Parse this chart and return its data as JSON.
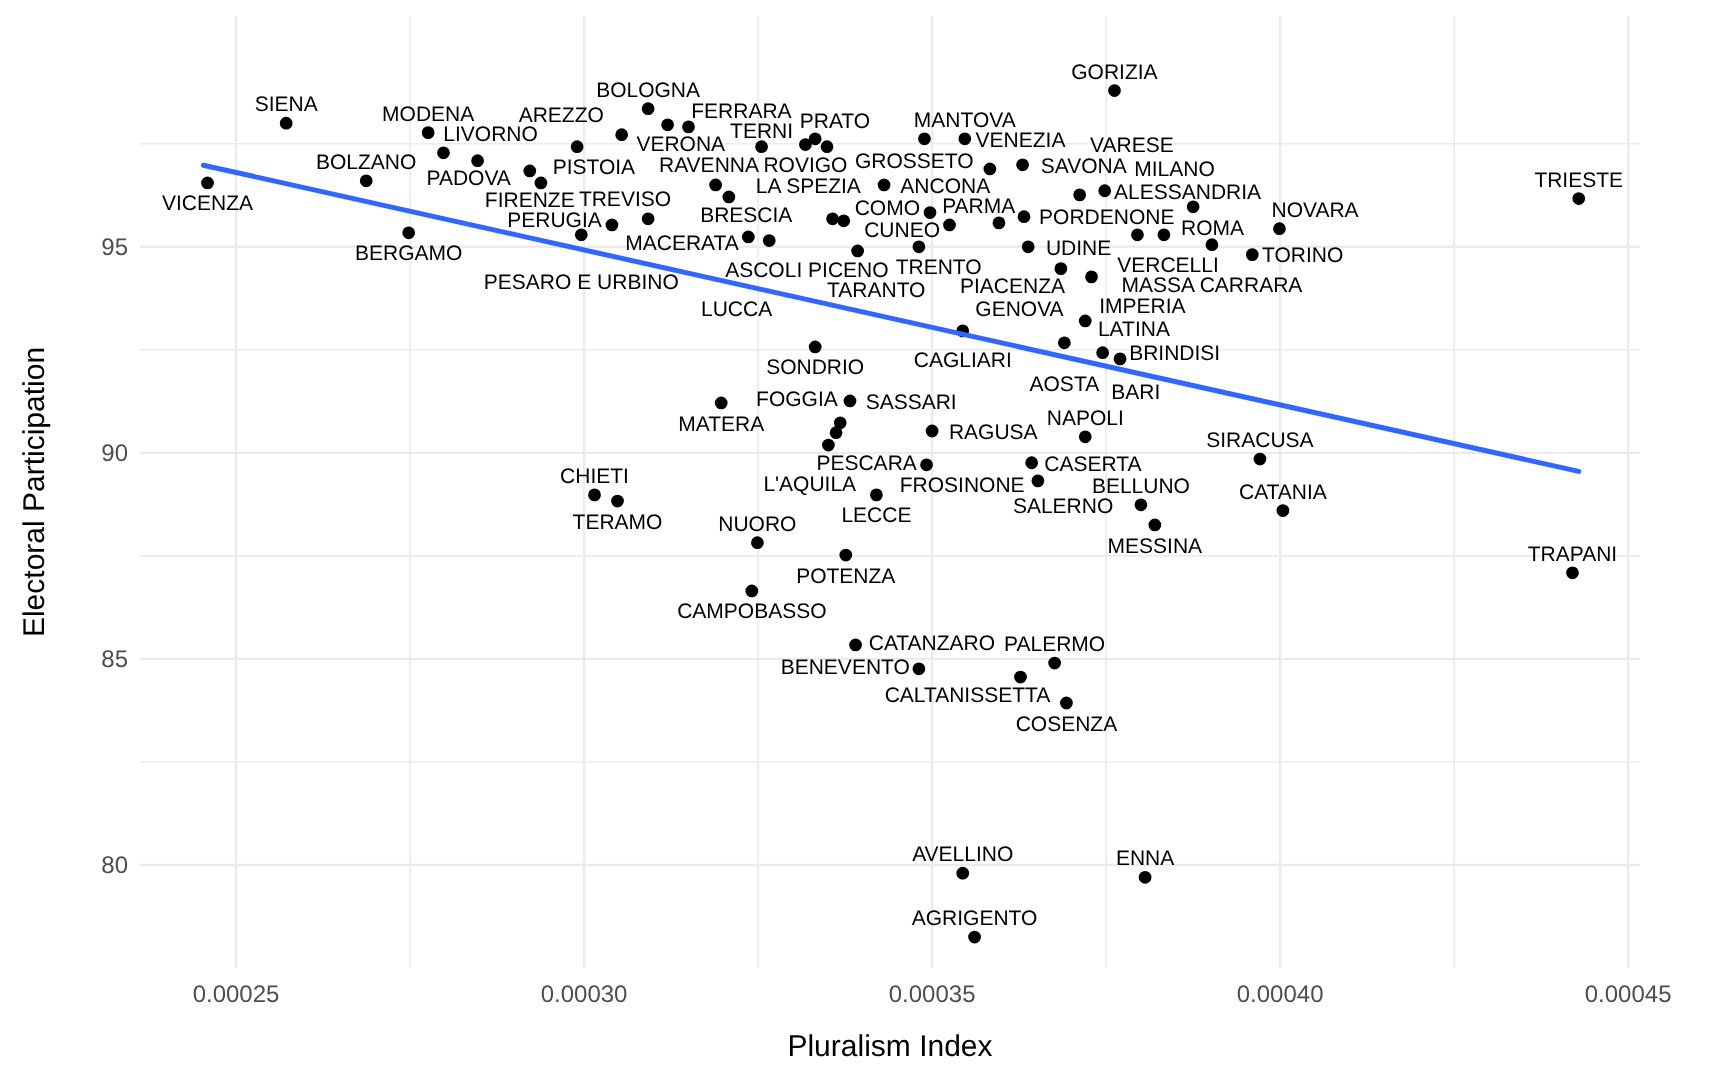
{
  "chart_data": {
    "type": "scatter",
    "xlabel": "Pluralism Index",
    "ylabel": "Electoral Participation",
    "xlim": [
      0.0002362,
      0.0004517
    ],
    "ylim": [
      77.5,
      100.6
    ],
    "xticks": [
      {
        "value": 0.00025,
        "label": "0.00025"
      },
      {
        "value": 0.000275,
        "label": null
      },
      {
        "value": 0.0003,
        "label": "0.00030"
      },
      {
        "value": 0.000325,
        "label": null
      },
      {
        "value": 0.00035,
        "label": "0.00035"
      },
      {
        "value": 0.000375,
        "label": null
      },
      {
        "value": 0.0004,
        "label": "0.00040"
      },
      {
        "value": 0.000425,
        "label": null
      },
      {
        "value": 0.00045,
        "label": "0.00045"
      }
    ],
    "yticks": [
      80,
      {
        "value": 82.5,
        "label": null
      },
      85,
      {
        "value": 87.5,
        "label": null
      },
      90,
      {
        "value": 92.5,
        "label": null
      },
      95,
      {
        "value": 97.5,
        "label": null
      }
    ],
    "grid": true,
    "series": [
      {
        "marker": "circle",
        "color": "#000000",
        "x": [
          0.0002459,
          0.0002572,
          0.0002687,
          0.0002748,
          0.0002776,
          0.0002798,
          0.0002847,
          0.0002922,
          0.0002938,
          0.000299,
          0.0002996,
          0.000304,
          0.0003092,
          0.0003054,
          0.000312,
          0.000315,
          0.0003255,
          0.0003318,
          0.0003332,
          0.0003349,
          0.0003489,
          0.0003547,
          0.0003189,
          0.0003208,
          0.0003092,
          0.0003236,
          0.0003266,
          0.0003357,
          0.0003373,
          0.0003393,
          0.0003431,
          0.0003481,
          0.0003497,
          0.0003525,
          0.0003583,
          0.0003596,
          0.000363,
          0.0003632,
          0.0003638,
          0.0003712,
          0.0003748,
          0.0003795,
          0.0003833,
          0.0003875,
          0.0003902,
          0.000396,
          0.0003999,
          0.0003685,
          0.0003729,
          0.0003762,
          0.0004429,
          0.0003544,
          0.000372,
          0.000369,
          0.0003745,
          0.000377,
          0.0003332,
          0.0003197,
          0.0003382,
          0.0003368,
          0.0003362,
          0.0003351,
          0.00035,
          0.0003492,
          0.0003643,
          0.0003652,
          0.000372,
          0.000342,
          0.0003015,
          0.0003048,
          0.00038,
          0.000382,
          0.0003249,
          0.0003376,
          0.0003241,
          0.0003971,
          0.0004004,
          0.000339,
          0.0003481,
          0.0003627,
          0.0003676,
          0.0003693,
          0.0003544,
          0.0003806,
          0.0003561,
          0.000442
        ],
        "values": [
          96.55,
          98.0,
          96.6,
          95.34,
          97.77,
          97.28,
          97.09,
          96.84,
          96.55,
          97.43,
          95.29,
          95.53,
          98.35,
          97.72,
          97.96,
          97.91,
          97.43,
          97.48,
          97.62,
          97.43,
          97.62,
          97.62,
          96.5,
          96.21,
          95.68,
          95.24,
          95.15,
          95.68,
          95.63,
          94.9,
          96.5,
          95.0,
          95.83,
          95.53,
          96.89,
          95.58,
          96.99,
          95.73,
          95.0,
          96.26,
          96.36,
          95.29,
          95.29,
          95.97,
          95.05,
          94.81,
          95.44,
          94.47,
          94.27,
          98.79,
          96.17,
          92.96,
          93.2,
          92.67,
          92.43,
          92.28,
          92.57,
          91.21,
          91.26,
          90.73,
          90.49,
          90.19,
          90.53,
          89.71,
          89.76,
          89.32,
          90.39,
          88.98,
          88.98,
          88.83,
          88.74,
          88.25,
          87.82,
          87.52,
          86.65,
          89.85,
          88.6,
          85.34,
          84.76,
          84.56,
          84.9,
          83.93,
          79.8,
          79.7,
          78.25,
          87.09
        ]
      },
      {
        "type": "line",
        "color": "#3366ff",
        "x": [
          0.0002453,
          0.0004429
        ],
        "values": [
          96.98,
          89.55
        ]
      }
    ],
    "annotations": [
      {
        "text": "VICENZA",
        "x": 0.0002459,
        "y": 96.55
      },
      {
        "text": "SIENA",
        "x": 0.0002572,
        "y": 98.0
      },
      {
        "text": "BOLZANO",
        "x": 0.0002687,
        "y": 96.6
      },
      {
        "text": "BERGAMO",
        "x": 0.0002748,
        "y": 95.34
      },
      {
        "text": "MODENA",
        "x": 0.0002776,
        "y": 97.77
      },
      {
        "text": "PADOVA",
        "x": 0.0002798,
        "y": 97.28
      },
      {
        "text": "LIVORNO",
        "x": 0.0002847,
        "y": 97.09
      },
      {
        "text": "FIRENZE",
        "x": 0.0002922,
        "y": 96.84
      },
      {
        "text": "PISTOIA",
        "x": 0.0002938,
        "y": 96.55
      },
      {
        "text": "AREZZO",
        "x": 0.000299,
        "y": 97.43
      },
      {
        "text": "PESARO E URBINO",
        "x": 0.0002996,
        "y": 95.29
      },
      {
        "text": "TREVISO",
        "x": 0.000304,
        "y": 95.53
      },
      {
        "text": "BOLOGNA",
        "x": 0.0003092,
        "y": 98.35
      },
      {
        "text": "VERONA",
        "x": 0.0003054,
        "y": 97.72
      },
      {
        "text": "RAVENNA",
        "x": 0.000312,
        "y": 97.96
      },
      {
        "text": "FERRARA",
        "x": 0.000315,
        "y": 97.91
      },
      {
        "text": "TERNI",
        "x": 0.0003255,
        "y": 97.43
      },
      {
        "text": "ROVIGO",
        "x": 0.0003318,
        "y": 97.48
      },
      {
        "text": "PRATO",
        "x": 0.0003332,
        "y": 97.62
      },
      {
        "text": "LA SPEZIA",
        "x": 0.0003349,
        "y": 97.43
      },
      {
        "text": "GROSSETO",
        "x": 0.0003489,
        "y": 97.62
      },
      {
        "text": "MANTOVA",
        "x": 0.0003547,
        "y": 97.62
      },
      {
        "text": "BRESCIA",
        "x": 0.0003189,
        "y": 96.5
      },
      {
        "text": "MACERATA",
        "x": 0.0003208,
        "y": 96.21
      },
      {
        "text": "PERUGIA",
        "x": 0.0003092,
        "y": 95.68
      },
      {
        "text": "ASCOLI PICENO",
        "x": 0.0003236,
        "y": 95.24
      },
      {
        "text": "LUCCA",
        "x": 0.0003266,
        "y": 95.15
      },
      {
        "text": "CUNEO",
        "x": 0.0003357,
        "y": 95.68
      },
      {
        "text": "COMO",
        "x": 0.0003373,
        "y": 95.63
      },
      {
        "text": "TARANTO",
        "x": 0.0003393,
        "y": 94.9
      },
      {
        "text": "ANCONA",
        "x": 0.0003431,
        "y": 96.5
      },
      {
        "text": "TRENTO",
        "x": 0.0003481,
        "y": 95.0
      },
      {
        "text": "PARMA",
        "x": 0.0003497,
        "y": 95.83
      },
      {
        "text": "PIACENZA",
        "x": 0.0003525,
        "y": 95.53
      },
      {
        "text": "VENEZIA",
        "x": 0.0003583,
        "y": 96.89
      },
      {
        "text": "SAVONA",
        "x": 0.000363,
        "y": 96.99
      },
      {
        "text": "PORDENONE",
        "x": 0.0003632,
        "y": 95.73
      },
      {
        "text": "UDINE",
        "x": 0.0003638,
        "y": 95.0
      },
      {
        "text": "VARESE",
        "x": 0.0003712,
        "y": 96.26
      },
      {
        "text": "ALESSANDRIA",
        "x": 0.0003748,
        "y": 96.36
      },
      {
        "text": "VERCELLI",
        "x": 0.0003795,
        "y": 95.29
      },
      {
        "text": "ROMA",
        "x": 0.0003833,
        "y": 95.29
      },
      {
        "text": "MILANO",
        "x": 0.0003875,
        "y": 95.97
      },
      {
        "text": "MASSA CARRARA",
        "x": 0.0003902,
        "y": 95.05
      },
      {
        "text": "TORINO",
        "x": 0.000396,
        "y": 94.81
      },
      {
        "text": "NOVARA",
        "x": 0.0003999,
        "y": 95.44
      },
      {
        "text": "GENOVA",
        "x": 0.0003685,
        "y": 94.47
      },
      {
        "text": "IMPERIA",
        "x": 0.0003729,
        "y": 94.27
      },
      {
        "text": "GORIZIA",
        "x": 0.0003762,
        "y": 98.79
      },
      {
        "text": "TRIESTE",
        "x": 0.0004429,
        "y": 96.17
      },
      {
        "text": "CAGLIARI",
        "x": 0.0003544,
        "y": 92.96
      },
      {
        "text": "LATINA",
        "x": 0.000372,
        "y": 93.2
      },
      {
        "text": "AOSTA",
        "x": 0.000369,
        "y": 92.67
      },
      {
        "text": "BRINDISI",
        "x": 0.0003745,
        "y": 92.43
      },
      {
        "text": "BARI",
        "x": 0.000377,
        "y": 92.28
      },
      {
        "text": "SONDRIO",
        "x": 0.0003332,
        "y": 92.57
      },
      {
        "text": "MATERA",
        "x": 0.0003197,
        "y": 91.21
      },
      {
        "text": "SASSARI",
        "x": 0.0003382,
        "y": 91.26
      },
      {
        "text": "FOGGIA",
        "x": 0.0003368,
        "y": 90.73
      },
      {
        "text": "PESCARA",
        "x": 0.0003362,
        "y": 90.49
      },
      {
        "text": "L'AQUILA",
        "x": 0.0003351,
        "y": 90.19
      },
      {
        "text": "RAGUSA",
        "x": 0.00035,
        "y": 90.53
      },
      {
        "text": "FROSINONE",
        "x": 0.0003492,
        "y": 89.71
      },
      {
        "text": "CASERTA",
        "x": 0.0003643,
        "y": 89.76
      },
      {
        "text": "SALERNO",
        "x": 0.0003652,
        "y": 89.32
      },
      {
        "text": "NAPOLI",
        "x": 0.000372,
        "y": 90.39
      },
      {
        "text": "LECCE",
        "x": 0.000342,
        "y": 88.98
      },
      {
        "text": "CHIETI",
        "x": 0.0003015,
        "y": 88.98
      },
      {
        "text": "TERAMO",
        "x": 0.0003048,
        "y": 88.83
      },
      {
        "text": "BELLUNO",
        "x": 0.00038,
        "y": 88.74
      },
      {
        "text": "MESSINA",
        "x": 0.000382,
        "y": 88.25
      },
      {
        "text": "NUORO",
        "x": 0.0003249,
        "y": 87.82
      },
      {
        "text": "POTENZA",
        "x": 0.0003376,
        "y": 87.52
      },
      {
        "text": "CAMPOBASSO",
        "x": 0.0003241,
        "y": 86.65
      },
      {
        "text": "SIRACUSA",
        "x": 0.0003971,
        "y": 89.85
      },
      {
        "text": "CATANIA",
        "x": 0.0004004,
        "y": 88.6
      },
      {
        "text": "BENEVENTO",
        "x": 0.000339,
        "y": 85.34
      },
      {
        "text": "CALTANISSETTA",
        "x": 0.0003627,
        "y": 84.56
      },
      {
        "text": "PALERMO",
        "x": 0.0003676,
        "y": 84.9
      },
      {
        "text": "COSENZA",
        "x": 0.0003693,
        "y": 83.93
      },
      {
        "text": "CATANZARO",
        "x": 0.0003481,
        "y": 84.76
      },
      {
        "text": "AVELLINO",
        "x": 0.0003544,
        "y": 79.8
      },
      {
        "text": "ENNA",
        "x": 0.0003806,
        "y": 79.7
      },
      {
        "text": "AGRIGENTO",
        "x": 0.0003561,
        "y": 78.25
      },
      {
        "text": "TRAPANI",
        "x": 0.000442,
        "y": 87.09
      }
    ]
  }
}
